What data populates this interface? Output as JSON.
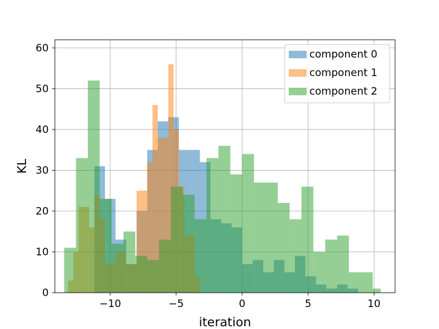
{
  "chart_data": {
    "type": "histogram",
    "xlabel": "iteration",
    "ylabel": "KL",
    "xlim": [
      -14.2,
      11.6
    ],
    "ylim": [
      0,
      62
    ],
    "xticks": [
      -10,
      -5,
      0,
      5,
      10
    ],
    "yticks": [
      0,
      10,
      20,
      30,
      40,
      50,
      60
    ],
    "grid": true,
    "legend_position": "top-right",
    "series": [
      {
        "name": "component 0",
        "color": "#1f77b4",
        "alpha": 0.5,
        "bins": [
          [
            -11.2,
            -10.4,
            31
          ],
          [
            -10.4,
            -9.6,
            23
          ],
          [
            -9.6,
            -8.8,
            13
          ],
          [
            -8.8,
            -8.0,
            7
          ],
          [
            -8.0,
            -7.2,
            20
          ],
          [
            -7.2,
            -6.4,
            35
          ],
          [
            -6.4,
            -5.6,
            42
          ],
          [
            -5.6,
            -4.8,
            43
          ],
          [
            -4.8,
            -4.0,
            35
          ],
          [
            -4.0,
            -3.2,
            35
          ],
          [
            -3.2,
            -2.4,
            32
          ],
          [
            -2.4,
            -1.6,
            18
          ],
          [
            -1.6,
            -0.8,
            17
          ],
          [
            -0.8,
            0.0,
            16
          ],
          [
            0.0,
            0.8,
            7
          ],
          [
            0.8,
            1.6,
            8
          ],
          [
            1.6,
            2.4,
            5
          ],
          [
            2.4,
            3.2,
            8
          ],
          [
            3.2,
            4.0,
            5
          ],
          [
            4.0,
            4.8,
            9
          ],
          [
            4.8,
            5.6,
            4
          ],
          [
            5.6,
            6.4,
            2
          ],
          [
            6.4,
            7.2,
            1
          ],
          [
            7.2,
            8.0,
            2
          ],
          [
            8.0,
            8.8,
            1
          ]
        ]
      },
      {
        "name": "component 1",
        "color": "#ff7f0e",
        "alpha": 0.5,
        "bins": [
          [
            -13.2,
            -12.8,
            3
          ],
          [
            -12.8,
            -12.4,
            10
          ],
          [
            -12.4,
            -11.6,
            21
          ],
          [
            -11.6,
            -11.2,
            16
          ],
          [
            -11.2,
            -10.8,
            24
          ],
          [
            -10.8,
            -10.4,
            18
          ],
          [
            -10.4,
            -9.6,
            7
          ],
          [
            -9.6,
            -8.8,
            10
          ],
          [
            -8.8,
            -8.0,
            7
          ],
          [
            -8.0,
            -7.2,
            25
          ],
          [
            -7.2,
            -6.8,
            32
          ],
          [
            -6.8,
            -6.4,
            46
          ],
          [
            -6.4,
            -5.6,
            38
          ],
          [
            -5.6,
            -5.2,
            56
          ],
          [
            -5.2,
            -4.8,
            40
          ],
          [
            -4.8,
            -4.4,
            26
          ],
          [
            -4.4,
            -3.6,
            14
          ],
          [
            -3.6,
            -3.2,
            4
          ]
        ]
      },
      {
        "name": "component 2",
        "color": "#2ca02c",
        "alpha": 0.5,
        "bins": [
          [
            -13.5,
            -12.6,
            11
          ],
          [
            -12.6,
            -11.7,
            33
          ],
          [
            -11.7,
            -10.8,
            52
          ],
          [
            -10.8,
            -9.9,
            23
          ],
          [
            -9.9,
            -9.0,
            12
          ],
          [
            -9.0,
            -8.1,
            15
          ],
          [
            -8.1,
            -7.2,
            9
          ],
          [
            -7.2,
            -6.3,
            8
          ],
          [
            -6.3,
            -5.4,
            13
          ],
          [
            -5.4,
            -4.5,
            26
          ],
          [
            -4.5,
            -3.6,
            24
          ],
          [
            -3.6,
            -2.7,
            18
          ],
          [
            -2.7,
            -1.8,
            33
          ],
          [
            -1.8,
            -0.9,
            36
          ],
          [
            -0.9,
            0.0,
            29
          ],
          [
            0.0,
            0.9,
            34
          ],
          [
            0.9,
            1.8,
            27
          ],
          [
            1.8,
            2.7,
            27
          ],
          [
            2.7,
            3.6,
            22
          ],
          [
            3.6,
            4.5,
            18
          ],
          [
            4.5,
            5.4,
            26
          ],
          [
            5.4,
            6.3,
            10
          ],
          [
            6.3,
            7.2,
            13
          ],
          [
            7.2,
            8.1,
            14
          ],
          [
            8.1,
            9.0,
            5
          ],
          [
            9.0,
            9.9,
            5
          ],
          [
            9.9,
            10.5,
            1
          ]
        ]
      }
    ]
  }
}
